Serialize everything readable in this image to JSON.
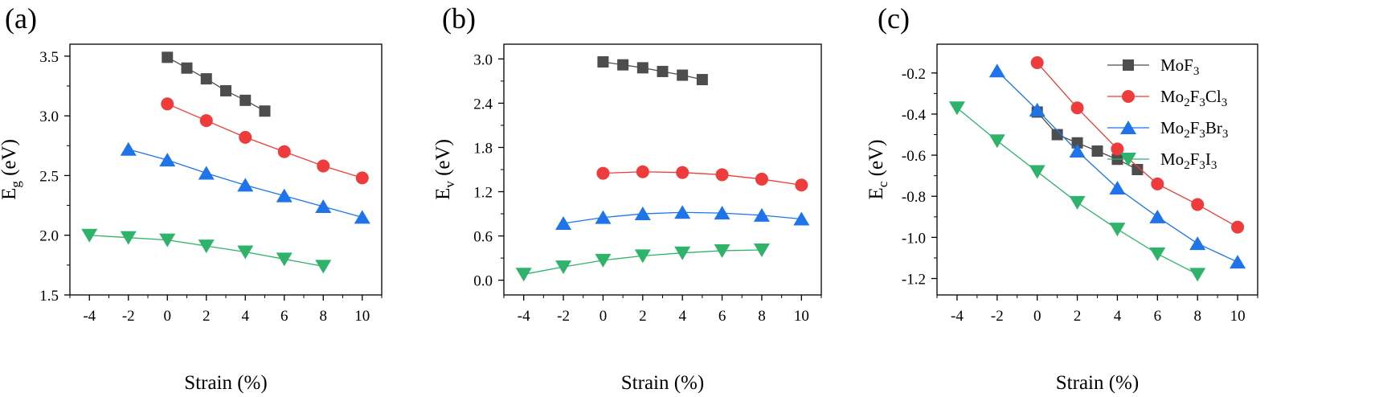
{
  "colors": {
    "MoF3": "#4d4d4d",
    "Mo2F3Cl3": "#ee3b3b",
    "Mo2F3Br3": "#1e74e8",
    "Mo2F3I3": "#2fb36b"
  },
  "legend": [
    {
      "key": "MoF3",
      "base": "MoF",
      "sub": "3",
      "rest": [],
      "marker": "square"
    },
    {
      "key": "Mo2F3Cl3",
      "base": "Mo",
      "sub": "2",
      "rest": [
        [
          "F",
          "3"
        ],
        [
          "Cl",
          "3"
        ]
      ],
      "marker": "circle"
    },
    {
      "key": "Mo2F3Br3",
      "base": "Mo",
      "sub": "2",
      "rest": [
        [
          "F",
          "3"
        ],
        [
          "Br",
          "3"
        ]
      ],
      "marker": "triangle-up"
    },
    {
      "key": "Mo2F3I3",
      "base": "Mo",
      "sub": "2",
      "rest": [
        [
          "F",
          "3"
        ],
        [
          "I",
          "3"
        ]
      ],
      "marker": "triangle-down"
    }
  ],
  "chart_data": [
    {
      "panel": "(a)",
      "type": "line",
      "xlabel": "Strain (%)",
      "ylabel_main": "E",
      "ylabel_sub": "g",
      "ylabel_unit": " (eV)",
      "xlim": [
        -5,
        11
      ],
      "ylim": [
        1.5,
        3.6
      ],
      "xticks": [
        -4,
        -2,
        0,
        2,
        4,
        6,
        8,
        10
      ],
      "yticks": [
        1.5,
        2.0,
        2.5,
        3.0,
        3.5
      ],
      "ytick_labels": [
        "1.5",
        "2.0",
        "2.5",
        "3.0",
        "3.5"
      ],
      "series": [
        {
          "key": "MoF3",
          "x": [
            0,
            1,
            2,
            3,
            4,
            5
          ],
          "y": [
            3.49,
            3.4,
            3.31,
            3.21,
            3.13,
            3.04
          ]
        },
        {
          "key": "Mo2F3Cl3",
          "x": [
            0,
            2,
            4,
            6,
            8,
            10
          ],
          "y": [
            3.1,
            2.96,
            2.82,
            2.7,
            2.58,
            2.48
          ]
        },
        {
          "key": "Mo2F3Br3",
          "x": [
            -2,
            0,
            2,
            4,
            6,
            8,
            10
          ],
          "y": [
            2.72,
            2.63,
            2.52,
            2.42,
            2.33,
            2.24,
            2.15
          ]
        },
        {
          "key": "Mo2F3I3",
          "x": [
            -4,
            -2,
            0,
            2,
            4,
            6,
            8
          ],
          "y": [
            2.0,
            1.98,
            1.96,
            1.91,
            1.86,
            1.8,
            1.74
          ]
        }
      ]
    },
    {
      "panel": "(b)",
      "type": "line",
      "xlabel": "Strain (%)",
      "ylabel_main": "E",
      "ylabel_sub": "v",
      "ylabel_unit": " (eV)",
      "xlim": [
        -5,
        11
      ],
      "ylim": [
        -0.2,
        3.2
      ],
      "xticks": [
        -4,
        -2,
        0,
        2,
        4,
        6,
        8,
        10
      ],
      "yticks": [
        0.0,
        0.6,
        1.2,
        1.8,
        2.4,
        3.0
      ],
      "ytick_labels": [
        "0.0",
        "0.6",
        "1.2",
        "1.8",
        "2.4",
        "3.0"
      ],
      "series": [
        {
          "key": "MoF3",
          "x": [
            0,
            1,
            2,
            3,
            4,
            5
          ],
          "y": [
            2.96,
            2.92,
            2.88,
            2.83,
            2.78,
            2.72
          ]
        },
        {
          "key": "Mo2F3Cl3",
          "x": [
            0,
            2,
            4,
            6,
            8,
            10
          ],
          "y": [
            1.45,
            1.47,
            1.46,
            1.43,
            1.37,
            1.29
          ]
        },
        {
          "key": "Mo2F3Br3",
          "x": [
            -2,
            0,
            2,
            4,
            6,
            8,
            10
          ],
          "y": [
            0.77,
            0.85,
            0.9,
            0.92,
            0.91,
            0.88,
            0.83
          ]
        },
        {
          "key": "Mo2F3I3",
          "x": [
            -4,
            -2,
            0,
            2,
            4,
            6,
            8
          ],
          "y": [
            0.08,
            0.18,
            0.27,
            0.33,
            0.37,
            0.4,
            0.41
          ]
        }
      ]
    },
    {
      "panel": "(c)",
      "type": "line",
      "xlabel": "Strain (%)",
      "ylabel_main": "E",
      "ylabel_sub": "c",
      "ylabel_unit": " (eV)",
      "xlim": [
        -5,
        11
      ],
      "ylim": [
        -1.28,
        -0.06
      ],
      "xticks": [
        -4,
        -2,
        0,
        2,
        4,
        6,
        8,
        10
      ],
      "yticks": [
        -1.2,
        -1.0,
        -0.8,
        -0.6,
        -0.4,
        -0.2
      ],
      "ytick_labels": [
        "-1.2",
        "-1.0",
        "-0.8",
        "-0.6",
        "-0.4",
        "-0.2"
      ],
      "series": [
        {
          "key": "MoF3",
          "x": [
            0,
            1,
            2,
            3,
            4,
            5
          ],
          "y": [
            -0.39,
            -0.5,
            -0.54,
            -0.58,
            -0.62,
            -0.67
          ]
        },
        {
          "key": "Mo2F3Cl3",
          "x": [
            0,
            2,
            4,
            6,
            8,
            10
          ],
          "y": [
            -0.15,
            -0.37,
            -0.57,
            -0.74,
            -0.84,
            -0.95
          ]
        },
        {
          "key": "Mo2F3Br3",
          "x": [
            -2,
            0,
            2,
            4,
            6,
            8,
            10
          ],
          "y": [
            -0.19,
            -0.38,
            -0.58,
            -0.76,
            -0.9,
            -1.03,
            -1.12
          ]
        },
        {
          "key": "Mo2F3I3",
          "x": [
            -4,
            -2,
            0,
            2,
            4,
            6,
            8
          ],
          "y": [
            -0.37,
            -0.53,
            -0.68,
            -0.83,
            -0.96,
            -1.08,
            -1.18
          ]
        }
      ]
    }
  ]
}
